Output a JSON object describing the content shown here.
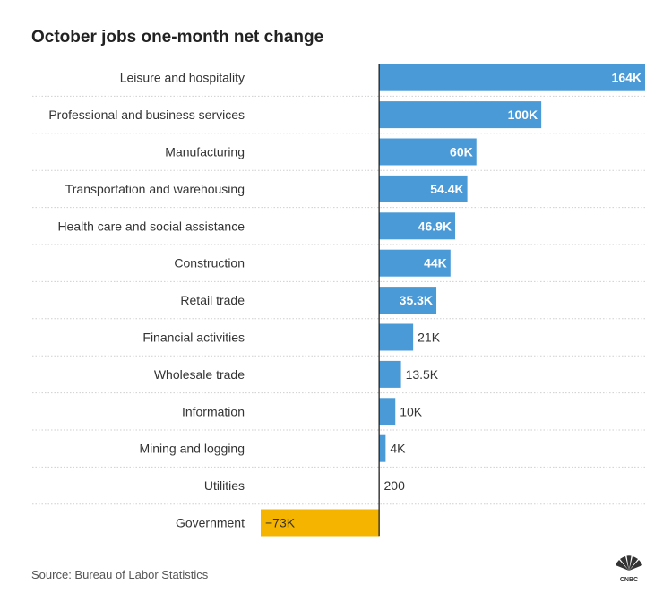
{
  "chart_data": {
    "type": "bar",
    "orientation": "horizontal",
    "title": "October jobs one-month net change",
    "categories": [
      "Leisure and hospitality",
      "Professional and business services",
      "Manufacturing",
      "Transportation and warehousing",
      "Health care and social assistance",
      "Construction",
      "Retail trade",
      "Financial activities",
      "Wholesale trade",
      "Information",
      "Mining and logging",
      "Utilities",
      "Government"
    ],
    "values": [
      164000,
      100000,
      60000,
      54400,
      46900,
      44000,
      35300,
      21000,
      13500,
      10000,
      4000,
      200,
      -73000
    ],
    "value_labels": [
      "164K",
      "100K",
      "60K",
      "54.4K",
      "46.9K",
      "44K",
      "35.3K",
      "21K",
      "13.5K",
      "10K",
      "4K",
      "200",
      "−73K"
    ],
    "xlim": [
      -73000,
      164000
    ],
    "xlabel": "",
    "ylabel": "",
    "grid": true,
    "colors": {
      "positive": "#4a9ad8",
      "negative": "#f5b400"
    }
  },
  "footer": {
    "source": "Source: Bureau of Labor Statistics",
    "logo_text": "CNBC"
  },
  "colors": {
    "title": "#222222",
    "label": "#333333",
    "gridline": "#cfcfcf",
    "axis": "#222222"
  }
}
